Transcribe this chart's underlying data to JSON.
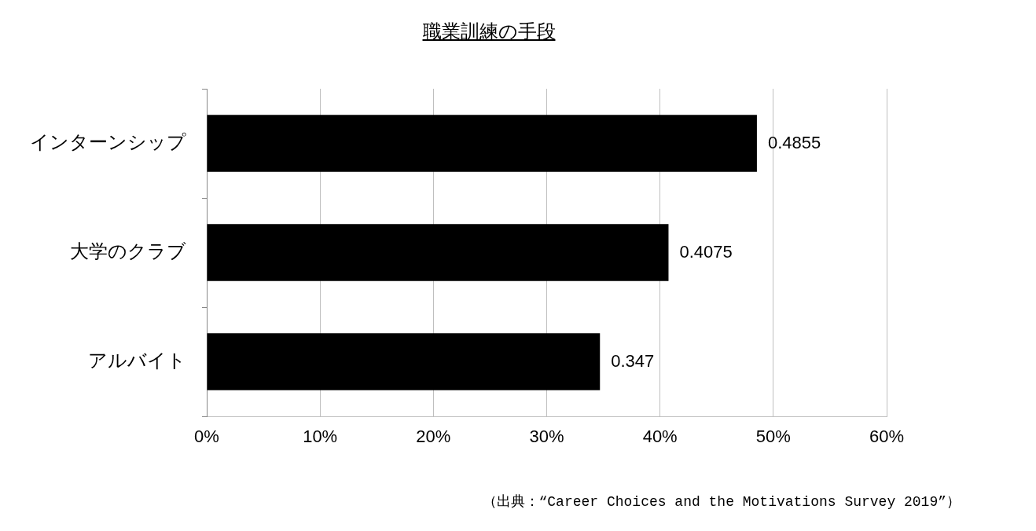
{
  "chart_data": {
    "type": "bar",
    "orientation": "horizontal",
    "title": "職業訓練の手段",
    "categories": [
      "インターンシップ",
      "大学のクラブ",
      "アルバイト"
    ],
    "values": [
      0.4855,
      0.4075,
      0.347
    ],
    "color": "#000000",
    "xlim": [
      0,
      0.6
    ],
    "xticks": [
      {
        "value": 0,
        "label": "0%"
      },
      {
        "value": 0.1,
        "label": "10%"
      },
      {
        "value": 0.2,
        "label": "20%"
      },
      {
        "value": 0.3,
        "label": "30%"
      },
      {
        "value": 0.4,
        "label": "40%"
      },
      {
        "value": 0.5,
        "label": "50%"
      },
      {
        "value": 0.6,
        "label": "60%"
      }
    ],
    "grid": "x",
    "legend": false,
    "data_labels": true,
    "annotations": [
      "（出典：“Career Choices and the Motivations Survey 2019”）"
    ]
  }
}
